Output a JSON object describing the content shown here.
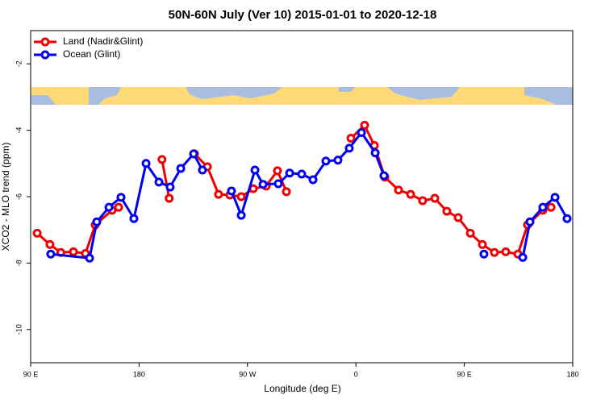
{
  "chart_data": {
    "type": "line",
    "title": "50N-60N July (Ver 10)   2015-01-01 to 2020-12-18",
    "x_label": "Longitude (deg E)",
    "y_label": "XCO2 - MLO trend (ppm)",
    "xlim": [
      90,
      540
    ],
    "ylim": [
      -11,
      -1
    ],
    "xticks": [
      {
        "value": 90,
        "label": "90 E"
      },
      180,
      {
        "value": 270,
        "label": "90 W"
      },
      {
        "value": 360,
        "label": "0"
      },
      {
        "value": 450,
        "label": "90 E"
      },
      {
        "value": 540,
        "label": "180"
      }
    ],
    "yticks": [
      -2,
      -4,
      -6,
      -8,
      -10
    ],
    "legend": "top-left",
    "series": [
      {
        "name": "Land (Nadir&Glint)",
        "color": "#ee0000",
        "x": [
          95.4,
          106,
          115,
          125.5,
          135.5,
          143.6,
          157.6,
          163,
          null,
          199,
          205,
          null,
          226,
          236.7,
          246,
          255.4,
          264.8,
          274.8,
          285.5,
          294.9,
          302.3,
          null,
          355.9,
          367.2,
          375.3,
          384,
          395.4,
          405.4,
          415.4,
          425.5,
          435.5,
          444.9,
          455,
          465,
          475,
          484.4,
          494.5,
          502.5,
          515.2,
          522
        ],
        "values": [
          -7.1,
          -7.44,
          -7.68,
          -7.66,
          -7.71,
          -6.85,
          -6.41,
          -6.32,
          null,
          -4.88,
          -6.05,
          null,
          -4.71,
          -5.1,
          -5.93,
          -5.95,
          -6.0,
          -5.76,
          -5.68,
          -5.22,
          -5.85,
          null,
          -4.24,
          -3.85,
          -4.46,
          -5.41,
          -5.8,
          -5.93,
          -6.12,
          -6.05,
          -6.44,
          -6.63,
          -7.1,
          -7.44,
          -7.68,
          -7.66,
          -7.73,
          -6.85,
          -6.41,
          -6.32
        ]
      },
      {
        "name": "Ocean (Glint)",
        "color": "#0000ee",
        "x": [
          106.7,
          138.9,
          144.9,
          155,
          165,
          175.7,
          185.8,
          196.5,
          205.8,
          214.6,
          225.3,
          232.6,
          null,
          256.7,
          264.8,
          276.2,
          282.9,
          295.6,
          305,
          315,
          324.4,
          335.1,
          345.1,
          354.5,
          364.6,
          376,
          383.3,
          null,
          466.3,
          null,
          498.5,
          504.5,
          515.2,
          525.3,
          535.3
        ],
        "values": [
          -7.73,
          -7.85,
          -6.76,
          -6.32,
          -6.02,
          -6.66,
          -5.0,
          -5.56,
          -5.71,
          -5.15,
          -4.71,
          -5.2,
          null,
          -5.83,
          -6.56,
          -5.2,
          -5.63,
          -5.61,
          -5.29,
          -5.32,
          -5.49,
          -4.93,
          -4.9,
          -4.54,
          -4.07,
          -4.68,
          -5.37,
          null,
          -7.73,
          null,
          -7.83,
          -6.76,
          -6.32,
          -6.02,
          -6.66
        ]
      }
    ]
  }
}
